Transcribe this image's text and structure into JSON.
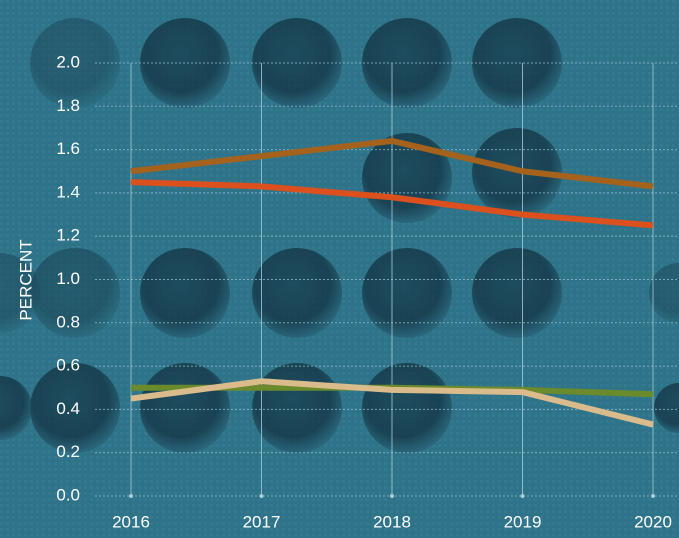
{
  "chart_data": {
    "type": "line",
    "y_label": "PERCENT",
    "categories": [
      "2016",
      "2017",
      "2018",
      "2019",
      "2020"
    ],
    "series": [
      {
        "color": "#a5621c",
        "values": [
          1.5,
          1.57,
          1.64,
          1.5,
          1.43
        ]
      },
      {
        "color": "#db501c",
        "values": [
          1.45,
          1.43,
          1.38,
          1.3,
          1.25
        ]
      },
      {
        "color": "#6a8a2c",
        "values": [
          0.5,
          0.5,
          0.5,
          0.49,
          0.47
        ]
      },
      {
        "color": "#d9bb8c",
        "values": [
          0.45,
          0.53,
          0.49,
          0.48,
          0.33
        ]
      }
    ],
    "ylim": [
      0,
      2
    ],
    "yticks": [
      {
        "value": 0,
        "label": "0.0"
      },
      0.2,
      0.4,
      0.6,
      0.8,
      {
        "value": 1,
        "label": "1.0"
      },
      1.2,
      1.4,
      1.6,
      1.8,
      {
        "value": 2,
        "label": "2.0"
      }
    ],
    "grid": true
  }
}
